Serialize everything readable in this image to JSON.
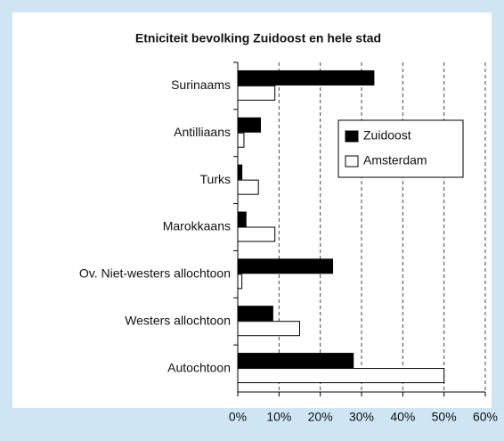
{
  "chart_data": {
    "type": "barh",
    "title": "Etniciteit bevolking Zuidoost en hele stad",
    "categories": [
      "Surinaams",
      "Antilliaans",
      "Turks",
      "Marokkaans",
      "Ov. Niet-westers allochtoon",
      "Westers allochtoon",
      "Autochtoon"
    ],
    "series": [
      {
        "name": "Zuidoost",
        "color": "#000000",
        "values": [
          33,
          5.5,
          1,
          2,
          23,
          8.5,
          28
        ]
      },
      {
        "name": "Amsterdam",
        "color": "#ffffff",
        "values": [
          9,
          1.5,
          5,
          9,
          1,
          15,
          50
        ]
      }
    ],
    "xlim": [
      0,
      60
    ],
    "xticks": [
      {
        "value": 0,
        "label": "0%"
      },
      {
        "value": 10,
        "label": "10%"
      },
      {
        "value": 20,
        "label": "20%"
      },
      {
        "value": 30,
        "label": "30%"
      },
      {
        "value": 40,
        "label": "40%"
      },
      {
        "value": 50,
        "label": "50%"
      },
      {
        "value": 60,
        "label": "60%"
      }
    ],
    "grid": true,
    "legend": "upper right"
  }
}
